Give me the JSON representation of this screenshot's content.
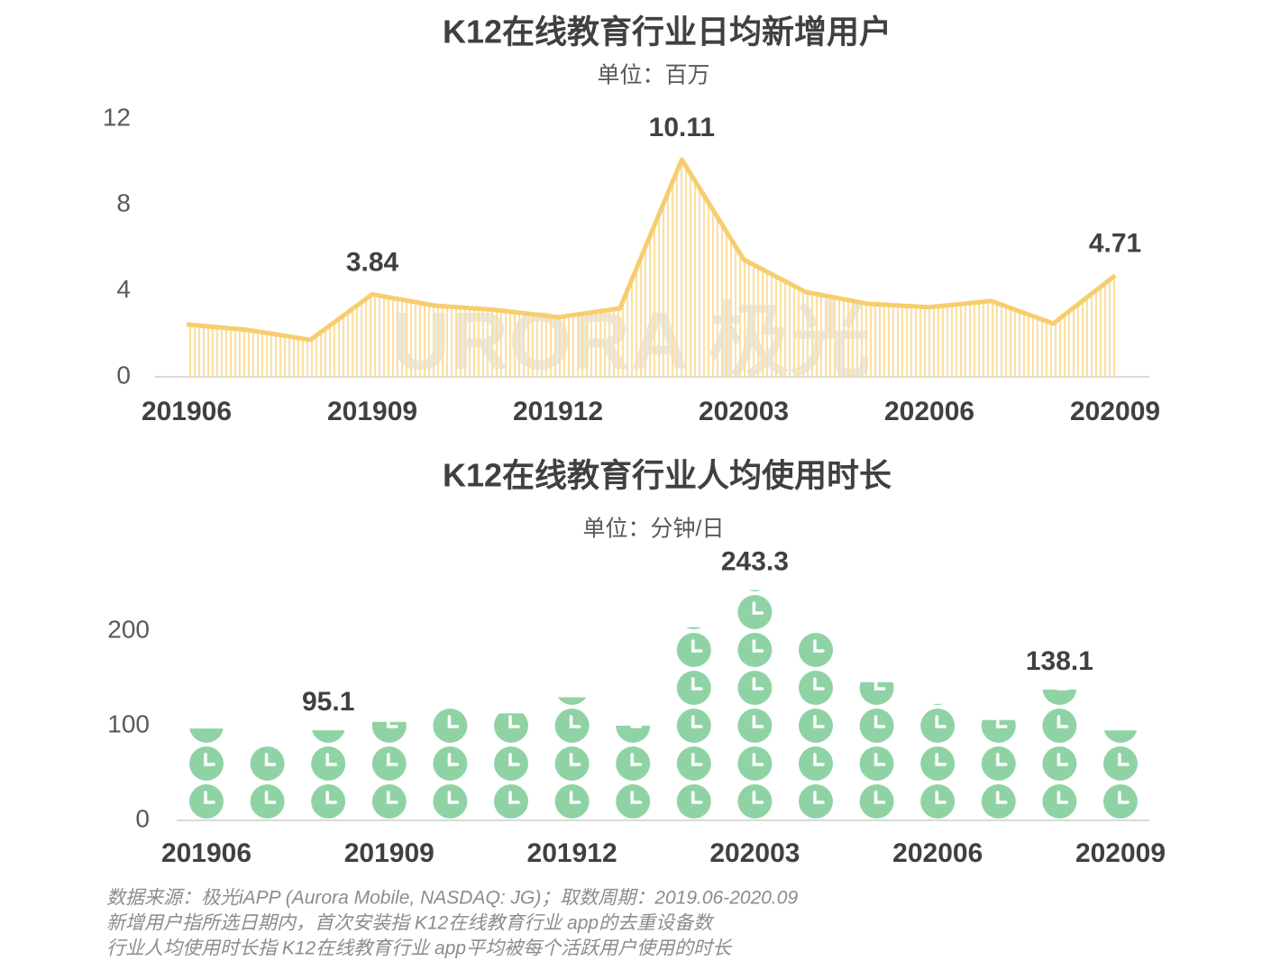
{
  "chart_data": [
    {
      "type": "line",
      "title": "K12在线教育行业日均新增用户",
      "subtitle": "单位：百万",
      "categories": [
        "201906",
        null,
        null,
        "201909",
        null,
        null,
        "201912",
        null,
        null,
        "202003",
        null,
        null,
        "202006",
        null,
        null,
        "202009"
      ],
      "values": [
        2.44,
        2.18,
        1.72,
        3.84,
        3.32,
        3.11,
        2.77,
        3.19,
        10.11,
        5.46,
        3.95,
        3.4,
        3.24,
        3.53,
        2.48,
        4.71
      ],
      "value_labels": [
        null,
        null,
        null,
        "3.84",
        null,
        null,
        null,
        null,
        "10.11",
        null,
        null,
        null,
        null,
        null,
        null,
        "4.71"
      ],
      "color": "#f7cd6e",
      "ylim": [
        0,
        12
      ],
      "yticks": [
        0,
        4,
        8,
        12
      ],
      "watermark": "URORA 极光"
    },
    {
      "type": "bar",
      "title": "K12在线教育行业人均使用时长",
      "subtitle": "单位：分钟/日",
      "categories": [
        "201906",
        null,
        null,
        "201909",
        null,
        null,
        "201912",
        null,
        null,
        "202003",
        null,
        null,
        "202006",
        null,
        null,
        "202009"
      ],
      "values": [
        97,
        81,
        95.1,
        104,
        122,
        113,
        130,
        100,
        204,
        243.3,
        199,
        146,
        123,
        106,
        138.1,
        95
      ],
      "value_labels": [
        null,
        null,
        "95.1",
        null,
        null,
        null,
        null,
        null,
        null,
        "243.3",
        null,
        null,
        null,
        null,
        "138.1",
        null
      ],
      "color": "#8fd3a5",
      "ylim": [
        0,
        250
      ],
      "yticks": [
        0,
        100,
        200
      ]
    }
  ],
  "notes": [
    "数据来源：极光iAPP (Aurora Mobile, NASDAQ: JG)；取数周期：2019.06-2020.09",
    "新增用户指所选日期内，首次安装指 K12在线教育行业 app的去重设备数",
    "行业人均使用时长指 K12在线教育行业 app平均被每个活跃用户使用的时长"
  ]
}
